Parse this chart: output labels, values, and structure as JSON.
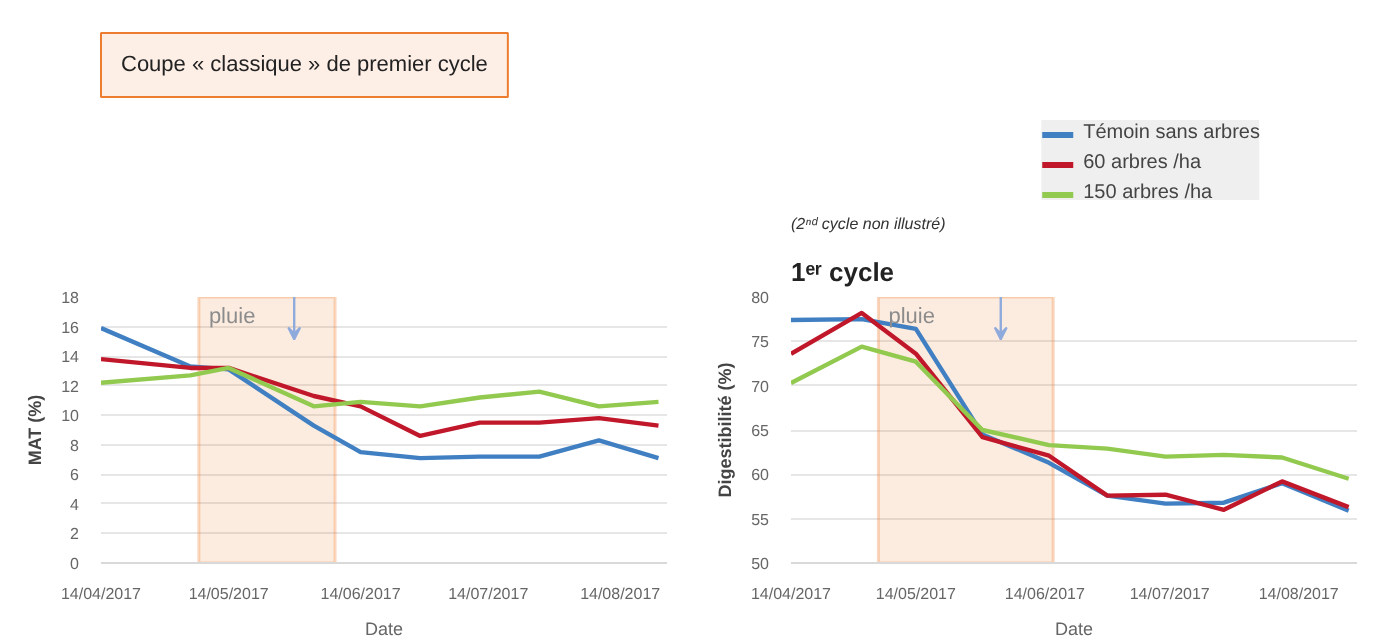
{
  "chart_data": [
    {
      "type": "line",
      "title": "Coupe « classique » de premier cycle",
      "xlabel": "Date",
      "ylabel": "MAT (%)",
      "x": [
        "2017-04-14",
        "2017-05-05",
        "2017-05-14",
        "2017-06-03",
        "2017-06-14",
        "2017-06-28",
        "2017-07-12",
        "2017-07-26",
        "2017-08-09",
        "2017-08-23"
      ],
      "series": [
        {
          "color": "#3f7fc2",
          "values": [
            15.9,
            13.3,
            13.1,
            9.3,
            7.5,
            7.1,
            7.2,
            7.2,
            8.3,
            7.1
          ]
        },
        {
          "color": "#c0182a",
          "values": [
            13.8,
            13.2,
            13.2,
            11.3,
            10.6,
            8.6,
            9.5,
            9.5,
            9.8,
            9.3
          ]
        },
        {
          "color": "#92c94f",
          "values": [
            12.2,
            12.7,
            13.2,
            10.6,
            10.9,
            10.6,
            11.2,
            11.6,
            10.6,
            10.9
          ]
        }
      ],
      "xlim": [
        "2017-04-14",
        "2017-08-25"
      ],
      "ylim": [
        0,
        18
      ],
      "xticks": [
        {
          "value": "2017-04-14",
          "label": "14/04/2017"
        },
        {
          "value": "2017-05-14",
          "label": "14/05/2017"
        },
        {
          "value": "2017-06-14",
          "label": "14/06/2017"
        },
        {
          "value": "2017-07-14",
          "label": "14/07/2017"
        },
        {
          "value": "2017-08-14",
          "label": "14/08/2017"
        }
      ],
      "yticks": [
        0,
        2,
        4,
        6,
        8,
        10,
        12,
        14,
        16,
        18
      ],
      "bands": [
        {
          "axis": "x",
          "from": "2017-05-07",
          "to": "2017-06-08",
          "label": "pluie",
          "color": "#ed7d31"
        }
      ],
      "grid": "y"
    },
    {
      "type": "line",
      "title": "1ᵉʳ cycle",
      "subtitle": "(2ⁿᵈ cycle non illustré)",
      "xlabel": "Date",
      "ylabel": "Digestibilité (%)",
      "x": [
        "2017-04-14",
        "2017-05-01",
        "2017-05-14",
        "2017-05-30",
        "2017-06-15",
        "2017-06-29",
        "2017-07-13",
        "2017-07-27",
        "2017-08-10",
        "2017-08-26"
      ],
      "series": [
        {
          "name": "Témoin sans arbres",
          "color": "#3f7fc2",
          "values": [
            77.4,
            77.5,
            76.4,
            64.5,
            61.3,
            57.6,
            56.7,
            56.8,
            59.0,
            55.9
          ]
        },
        {
          "name": "60 arbres /ha",
          "color": "#c0182a",
          "values": [
            73.6,
            78.2,
            73.6,
            64.2,
            62.1,
            57.6,
            57.7,
            56.0,
            59.2,
            56.3
          ]
        },
        {
          "name": "150 arbres /ha",
          "color": "#92c94f",
          "values": [
            70.3,
            74.4,
            72.7,
            65.0,
            63.3,
            62.9,
            62.0,
            62.2,
            61.9,
            59.5
          ]
        }
      ],
      "xlim": [
        "2017-04-14",
        "2017-08-28"
      ],
      "ylim": [
        50,
        80
      ],
      "xticks": [
        {
          "value": "2017-04-14",
          "label": "14/04/2017"
        },
        {
          "value": "2017-05-14",
          "label": "14/05/2017"
        },
        {
          "value": "2017-06-14",
          "label": "14/06/2017"
        },
        {
          "value": "2017-07-14",
          "label": "14/07/2017"
        },
        {
          "value": "2017-08-14",
          "label": "14/08/2017"
        }
      ],
      "yticks": [
        50,
        55,
        60,
        65,
        70,
        75,
        80
      ],
      "bands": [
        {
          "axis": "x",
          "from": "2017-05-05",
          "to": "2017-06-16",
          "label": "pluie",
          "color": "#ed7d31"
        }
      ],
      "grid": "y",
      "legend": "top right"
    }
  ]
}
